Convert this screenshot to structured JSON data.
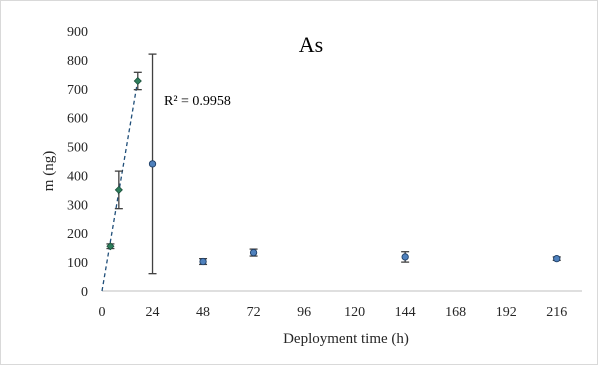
{
  "chart_data": {
    "type": "scatter",
    "title": "As",
    "xlabel": "Deployment time (h)",
    "ylabel": "m (ng)",
    "xlim": [
      0,
      228
    ],
    "ylim": [
      0,
      900
    ],
    "x_ticks": [
      "0",
      "24",
      "48",
      "72",
      "96",
      "120",
      "144",
      "168",
      "192",
      "216"
    ],
    "y_ticks": [
      "0",
      "100",
      "200",
      "300",
      "400",
      "500",
      "600",
      "700",
      "800",
      "900"
    ],
    "grid": false,
    "legend": "none",
    "series": [
      {
        "marker": "diamond",
        "color": "#2e7d5b",
        "points": [
          {
            "x": 4,
            "y": 155,
            "err": 8
          },
          {
            "x": 8,
            "y": 350,
            "err": 65
          },
          {
            "x": 17,
            "y": 727,
            "err": 30
          }
        ]
      },
      {
        "marker": "circle",
        "color": "#4f81bd",
        "points": [
          {
            "x": 24,
            "y": 440,
            "err": 380
          },
          {
            "x": 48,
            "y": 102,
            "err": 10
          },
          {
            "x": 72,
            "y": 133,
            "err": 12
          },
          {
            "x": 144,
            "y": 118,
            "err": 18
          },
          {
            "x": 216,
            "y": 112,
            "err": 6
          }
        ]
      }
    ],
    "trendline": {
      "style": "dashed",
      "color": "#1f4e79",
      "x": [
        0,
        17
      ],
      "y": [
        0,
        730
      ],
      "label": "R² = 0.9958"
    }
  }
}
